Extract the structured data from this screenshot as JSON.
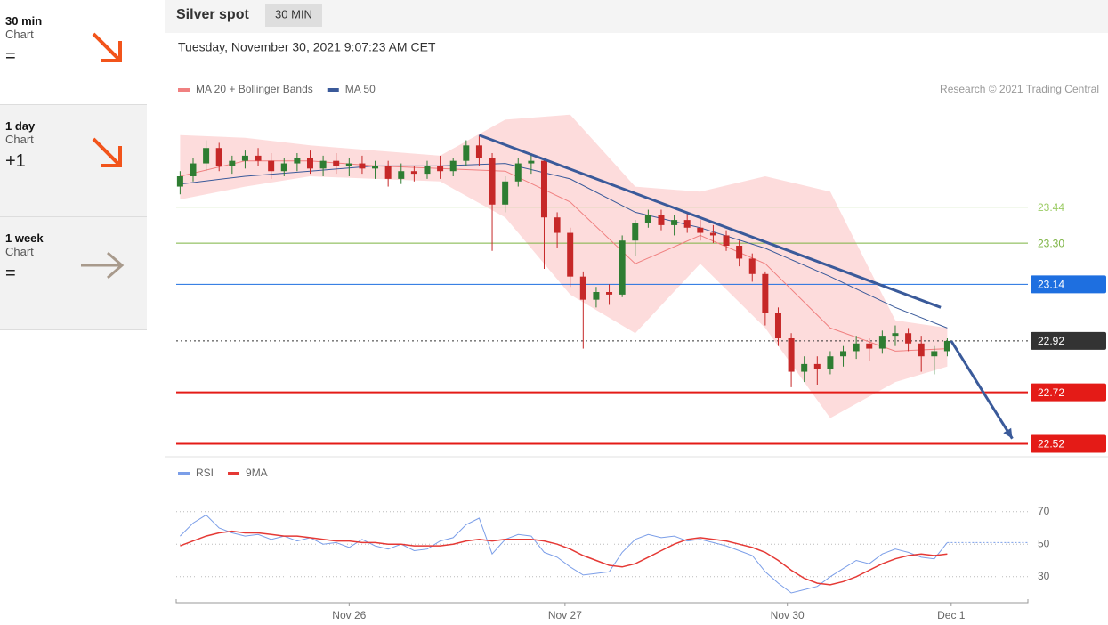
{
  "sidebar": [
    {
      "period": "30 min",
      "label": "Chart",
      "signal": "="
    },
    {
      "period": "1 day",
      "label": "Chart",
      "signal": "+1"
    },
    {
      "period": "1 week",
      "label": "Chart",
      "signal": "="
    }
  ],
  "header": {
    "title": "Silver spot",
    "interval": "30 MIN",
    "timestamp": "Tuesday, November 30, 2021 9:07:23 AM CET",
    "credit": "Research © 2021 Trading Central"
  },
  "chart_data": [
    {
      "type": "candlestick",
      "up_color": "#2e7d32",
      "down_color": "#c62828",
      "xlim": [
        -0.3,
        65.2
      ],
      "ylim": [
        22.48,
        23.83
      ],
      "ohlc": [
        [
          23.52,
          23.58,
          23.49,
          23.56
        ],
        [
          23.56,
          23.63,
          23.54,
          23.61
        ],
        [
          23.61,
          23.7,
          23.58,
          23.67
        ],
        [
          23.67,
          23.69,
          23.58,
          23.6
        ],
        [
          23.6,
          23.64,
          23.57,
          23.62
        ],
        [
          23.62,
          23.66,
          23.59,
          23.64
        ],
        [
          23.64,
          23.67,
          23.6,
          23.62
        ],
        [
          23.62,
          23.65,
          23.55,
          23.58
        ],
        [
          23.58,
          23.63,
          23.56,
          23.61
        ],
        [
          23.61,
          23.65,
          23.58,
          23.63
        ],
        [
          23.63,
          23.66,
          23.57,
          23.59
        ],
        [
          23.59,
          23.64,
          23.56,
          23.62
        ],
        [
          23.62,
          23.65,
          23.57,
          23.6
        ],
        [
          23.6,
          23.63,
          23.56,
          23.61
        ],
        [
          23.61,
          23.64,
          23.57,
          23.59
        ],
        [
          23.59,
          23.62,
          23.55,
          23.6
        ],
        [
          23.6,
          23.62,
          23.52,
          23.55
        ],
        [
          23.55,
          23.61,
          23.53,
          23.58
        ],
        [
          23.58,
          23.6,
          23.54,
          23.57
        ],
        [
          23.57,
          23.62,
          23.55,
          23.6
        ],
        [
          23.6,
          23.64,
          23.55,
          23.58
        ],
        [
          23.58,
          23.63,
          23.56,
          23.62
        ],
        [
          23.62,
          23.7,
          23.6,
          23.68
        ],
        [
          23.68,
          23.72,
          23.6,
          23.63
        ],
        [
          23.63,
          23.65,
          23.27,
          23.45
        ],
        [
          23.45,
          23.56,
          23.42,
          23.54
        ],
        [
          23.54,
          23.63,
          23.52,
          23.61
        ],
        [
          23.61,
          23.65,
          23.57,
          23.62
        ],
        [
          23.62,
          23.63,
          23.2,
          23.4
        ],
        [
          23.4,
          23.42,
          23.28,
          23.34
        ],
        [
          23.34,
          23.36,
          23.13,
          23.17
        ],
        [
          23.17,
          23.19,
          22.89,
          23.08
        ],
        [
          23.08,
          23.13,
          23.05,
          23.11
        ],
        [
          23.11,
          23.14,
          23.06,
          23.1
        ],
        [
          23.1,
          23.33,
          23.09,
          23.31
        ],
        [
          23.31,
          23.39,
          23.25,
          23.38
        ],
        [
          23.38,
          23.43,
          23.36,
          23.41
        ],
        [
          23.41,
          23.43,
          23.35,
          23.37
        ],
        [
          23.37,
          23.41,
          23.33,
          23.39
        ],
        [
          23.39,
          23.42,
          23.34,
          23.36
        ],
        [
          23.36,
          23.39,
          23.31,
          23.34
        ],
        [
          23.34,
          23.37,
          23.3,
          23.33
        ],
        [
          23.33,
          23.35,
          23.27,
          23.29
        ],
        [
          23.29,
          23.31,
          23.21,
          23.24
        ],
        [
          23.24,
          23.26,
          23.15,
          23.18
        ],
        [
          23.18,
          23.19,
          22.98,
          23.03
        ],
        [
          23.03,
          23.05,
          22.9,
          22.93
        ],
        [
          22.93,
          22.95,
          22.74,
          22.8
        ],
        [
          22.8,
          22.86,
          22.76,
          22.83
        ],
        [
          22.83,
          22.86,
          22.75,
          22.81
        ],
        [
          22.81,
          22.88,
          22.79,
          22.86
        ],
        [
          22.86,
          22.9,
          22.82,
          22.88
        ],
        [
          22.88,
          22.94,
          22.85,
          22.91
        ],
        [
          22.91,
          22.93,
          22.84,
          22.89
        ],
        [
          22.89,
          22.96,
          22.87,
          22.94
        ],
        [
          22.94,
          22.98,
          22.9,
          22.95
        ],
        [
          22.95,
          22.97,
          22.88,
          22.91
        ],
        [
          22.91,
          22.94,
          22.8,
          22.86
        ],
        [
          22.86,
          22.9,
          22.79,
          22.88
        ],
        [
          22.88,
          22.93,
          22.86,
          22.92
        ]
      ],
      "series": [
        {
          "name": "MA 20 + Bollinger Bands",
          "color": "#f08080",
          "band_color": "#fddcdc",
          "x": [
            0,
            5,
            10,
            15,
            20,
            25,
            30,
            35,
            40,
            45,
            50,
            55,
            59
          ],
          "values": [
            23.56,
            23.62,
            23.62,
            23.6,
            23.59,
            23.58,
            23.46,
            23.22,
            23.33,
            23.22,
            22.97,
            22.88,
            22.89
          ],
          "upper": [
            23.72,
            23.71,
            23.68,
            23.66,
            23.64,
            23.78,
            23.8,
            23.52,
            23.5,
            23.56,
            23.5,
            23.0,
            22.97
          ],
          "lower": [
            23.47,
            23.52,
            23.56,
            23.55,
            23.54,
            23.4,
            23.1,
            22.95,
            23.22,
            22.97,
            22.62,
            22.76,
            22.82
          ]
        },
        {
          "name": "MA 50",
          "color": "#3a5a9a",
          "x": [
            0,
            5,
            10,
            15,
            20,
            25,
            30,
            35,
            40,
            45,
            50,
            55,
            59
          ],
          "values": [
            23.53,
            23.56,
            23.58,
            23.6,
            23.6,
            23.61,
            23.55,
            23.42,
            23.36,
            23.28,
            23.17,
            23.05,
            22.97
          ]
        }
      ],
      "levels": [
        {
          "value": 23.44,
          "color": "#9ccc65",
          "weight": 1,
          "tag": false,
          "dash": false
        },
        {
          "value": 23.3,
          "label": "23.30",
          "color": "#7cb342",
          "weight": 1,
          "tag": false,
          "dash": false
        },
        {
          "value": 23.14,
          "color": "#1e6fe0",
          "weight": 1,
          "tag": true,
          "dash": false
        },
        {
          "value": 22.92,
          "color": "#333333",
          "weight": 1,
          "tag": true,
          "dash": true
        },
        {
          "value": 22.72,
          "color": "#e41b17",
          "weight": 2,
          "tag": true,
          "dash": false
        },
        {
          "value": 22.52,
          "color": "#e41b17",
          "weight": 2,
          "tag": true,
          "dash": false
        }
      ],
      "trendline": {
        "color": "#3a5a9a",
        "x": [
          23,
          58.5
        ],
        "values": [
          23.72,
          23.05
        ]
      },
      "projection": {
        "color": "#3a5a9a",
        "x": [
          59.3,
          64
        ],
        "values": [
          22.92,
          22.54
        ]
      }
    },
    {
      "type": "line",
      "xlim": [
        -0.3,
        65.2
      ],
      "ylim": [
        14,
        89
      ],
      "yticks": [
        30,
        50,
        70
      ],
      "grid": true,
      "xticks": [
        {
          "value": 13,
          "label": "Nov 26"
        },
        {
          "value": 29.6,
          "label": "Nov 27"
        },
        {
          "value": 46.7,
          "label": "Nov 30"
        },
        {
          "value": 59.3,
          "label": "Dec 1"
        }
      ],
      "series": [
        {
          "name": "RSI",
          "color": "#7b9ee8",
          "values": [
            55,
            63,
            68,
            60,
            57,
            55,
            56,
            53,
            55,
            52,
            54,
            50,
            51,
            48,
            53,
            49,
            47,
            50,
            46,
            47,
            52,
            54,
            62,
            66,
            44,
            53,
            56,
            55,
            45,
            42,
            36,
            31,
            32,
            33,
            45,
            53,
            56,
            54,
            55,
            52,
            53,
            51,
            49,
            46,
            43,
            33,
            26,
            20,
            22,
            24,
            30,
            35,
            40,
            38,
            44,
            47,
            45,
            42,
            41,
            51
          ]
        },
        {
          "name": "9MA",
          "color": "#e53935",
          "values": [
            49,
            52,
            55,
            57,
            58,
            57,
            57,
            56,
            55,
            55,
            54,
            53,
            52,
            52,
            51,
            51,
            50,
            50,
            49,
            49,
            49,
            50,
            52,
            53,
            52,
            53,
            53,
            53,
            52,
            50,
            47,
            43,
            40,
            37,
            36,
            38,
            42,
            46,
            50,
            53,
            54,
            53,
            52,
            50,
            48,
            45,
            40,
            34,
            29,
            26,
            25,
            27,
            30,
            34,
            38,
            41,
            43,
            44,
            43,
            44
          ]
        }
      ]
    }
  ]
}
